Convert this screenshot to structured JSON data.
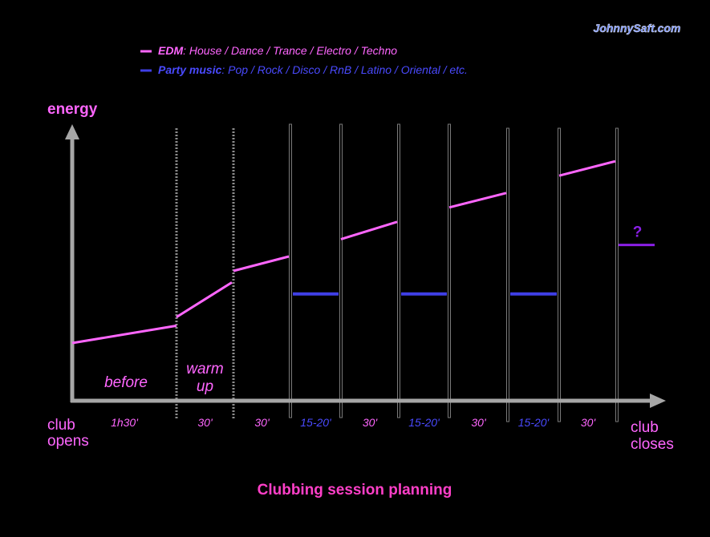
{
  "watermark": "JohnnySaft.com",
  "colors": {
    "edm": "#ff66ff",
    "party": "#3f3fe6",
    "unknown": "#8a1fe6",
    "axis": "#a6a6a6",
    "title": "#ff3fc8",
    "watermark": "#6f8cff"
  },
  "legend": {
    "edm_name": "EDM",
    "edm_desc": ": House / Dance / Trance / Electro / Techno",
    "party_name": "Party music",
    "party_desc": ": Pop / Rock / Disco / RnB / Latino / Oriental / etc."
  },
  "chart_data": {
    "type": "line",
    "title": "Clubbing session planning",
    "ylabel": "energy",
    "x_start_label": [
      "club",
      "opens"
    ],
    "x_end_label": [
      "club",
      "closes"
    ],
    "grid": false,
    "legend_position": "top-left",
    "segments": [
      {
        "label": "before",
        "duration": "1h30'",
        "genre": "EDM",
        "energy_start": 20,
        "energy_end": 26
      },
      {
        "label": [
          "warm",
          "up"
        ],
        "duration": "30'",
        "genre": "EDM",
        "energy_start": 29,
        "energy_end": 41
      },
      {
        "duration": "30'",
        "genre": "EDM",
        "energy_start": 45,
        "energy_end": 50
      },
      {
        "duration": "15-20'",
        "genre": "Party music",
        "energy_start": 37,
        "energy_end": 37
      },
      {
        "duration": "30'",
        "genre": "EDM",
        "energy_start": 56,
        "energy_end": 62
      },
      {
        "duration": "15-20'",
        "genre": "Party music",
        "energy_start": 37,
        "energy_end": 37
      },
      {
        "duration": "30'",
        "genre": "EDM",
        "energy_start": 67,
        "energy_end": 72
      },
      {
        "duration": "15-20'",
        "genre": "Party music",
        "energy_start": 37,
        "energy_end": 37
      },
      {
        "duration": "30'",
        "genre": "EDM",
        "energy_start": 78,
        "energy_end": 83
      },
      {
        "genre": "unknown",
        "marker": "?",
        "energy_start": 54,
        "energy_end": 54
      }
    ]
  }
}
